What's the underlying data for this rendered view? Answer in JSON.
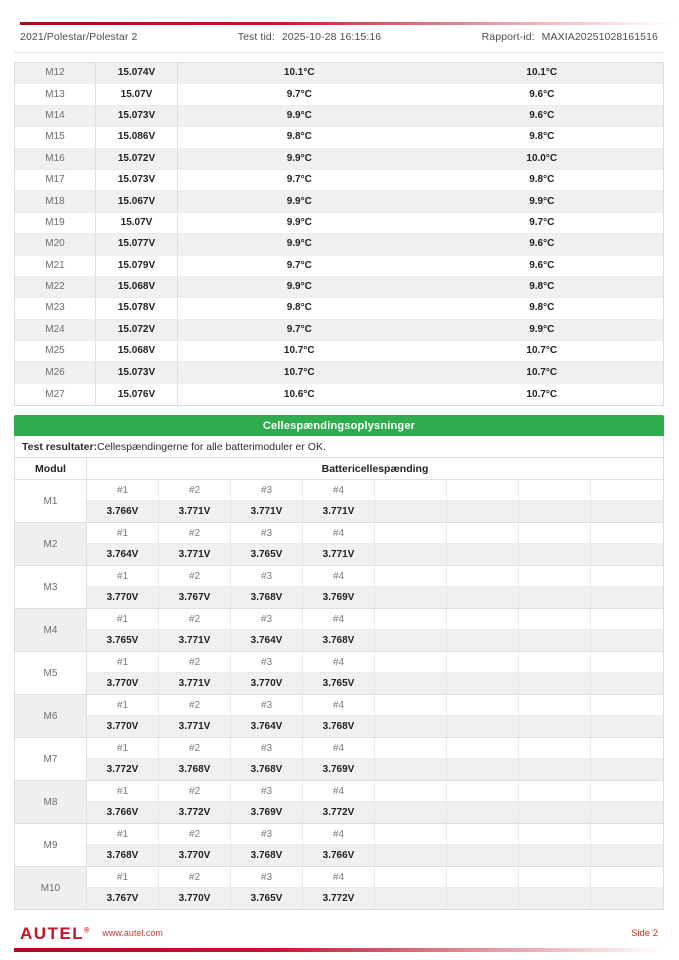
{
  "header": {
    "breadcrumb": "2021/Polestar/Polestar 2",
    "test_time_label": "Test tid:",
    "test_time_value": "2025-10-28 16:15:16",
    "report_id_label": "Rapport-id:",
    "report_id_value": "MAXIA20251028161516"
  },
  "module_table": {
    "rows": [
      {
        "module": "M12",
        "voltage": "15.074V",
        "temp1": "10.1°C",
        "temp2": "10.1°C"
      },
      {
        "module": "M13",
        "voltage": "15.07V",
        "temp1": "9.7°C",
        "temp2": "9.6°C"
      },
      {
        "module": "M14",
        "voltage": "15.073V",
        "temp1": "9.9°C",
        "temp2": "9.6°C"
      },
      {
        "module": "M15",
        "voltage": "15.086V",
        "temp1": "9.8°C",
        "temp2": "9.8°C"
      },
      {
        "module": "M16",
        "voltage": "15.072V",
        "temp1": "9.9°C",
        "temp2": "10.0°C"
      },
      {
        "module": "M17",
        "voltage": "15.073V",
        "temp1": "9.7°C",
        "temp2": "9.8°C"
      },
      {
        "module": "M18",
        "voltage": "15.067V",
        "temp1": "9.9°C",
        "temp2": "9.9°C"
      },
      {
        "module": "M19",
        "voltage": "15.07V",
        "temp1": "9.9°C",
        "temp2": "9.7°C"
      },
      {
        "module": "M20",
        "voltage": "15.077V",
        "temp1": "9.9°C",
        "temp2": "9.6°C"
      },
      {
        "module": "M21",
        "voltage": "15.079V",
        "temp1": "9.7°C",
        "temp2": "9.6°C"
      },
      {
        "module": "M22",
        "voltage": "15.068V",
        "temp1": "9.9°C",
        "temp2": "9.8°C"
      },
      {
        "module": "M23",
        "voltage": "15.078V",
        "temp1": "9.8°C",
        "temp2": "9.8°C"
      },
      {
        "module": "M24",
        "voltage": "15.072V",
        "temp1": "9.7°C",
        "temp2": "9.9°C"
      },
      {
        "module": "M25",
        "voltage": "15.068V",
        "temp1": "10.7°C",
        "temp2": "10.7°C"
      },
      {
        "module": "M26",
        "voltage": "15.073V",
        "temp1": "10.7°C",
        "temp2": "10.7°C"
      },
      {
        "module": "M27",
        "voltage": "15.076V",
        "temp1": "10.6°C",
        "temp2": "10.7°C"
      }
    ]
  },
  "cell_section": {
    "title": "Cellespændingsoplysninger",
    "result_label": "Test resultater:",
    "result_text": "Cellespændingerne for alle batterimoduler er OK.",
    "col_module": "Modul",
    "col_cells": "Battericellespænding",
    "modules": [
      {
        "module": "M1",
        "cells": [
          {
            "n": "#1",
            "v": "3.766V"
          },
          {
            "n": "#2",
            "v": "3.771V"
          },
          {
            "n": "#3",
            "v": "3.771V"
          },
          {
            "n": "#4",
            "v": "3.771V"
          }
        ]
      },
      {
        "module": "M2",
        "cells": [
          {
            "n": "#1",
            "v": "3.764V"
          },
          {
            "n": "#2",
            "v": "3.771V"
          },
          {
            "n": "#3",
            "v": "3.765V"
          },
          {
            "n": "#4",
            "v": "3.771V"
          }
        ]
      },
      {
        "module": "M3",
        "cells": [
          {
            "n": "#1",
            "v": "3.770V"
          },
          {
            "n": "#2",
            "v": "3.767V"
          },
          {
            "n": "#3",
            "v": "3.768V"
          },
          {
            "n": "#4",
            "v": "3.769V"
          }
        ]
      },
      {
        "module": "M4",
        "cells": [
          {
            "n": "#1",
            "v": "3.765V"
          },
          {
            "n": "#2",
            "v": "3.771V"
          },
          {
            "n": "#3",
            "v": "3.764V"
          },
          {
            "n": "#4",
            "v": "3.768V"
          }
        ]
      },
      {
        "module": "M5",
        "cells": [
          {
            "n": "#1",
            "v": "3.770V"
          },
          {
            "n": "#2",
            "v": "3.771V"
          },
          {
            "n": "#3",
            "v": "3.770V"
          },
          {
            "n": "#4",
            "v": "3.765V"
          }
        ]
      },
      {
        "module": "M6",
        "cells": [
          {
            "n": "#1",
            "v": "3.770V"
          },
          {
            "n": "#2",
            "v": "3.771V"
          },
          {
            "n": "#3",
            "v": "3.764V"
          },
          {
            "n": "#4",
            "v": "3.768V"
          }
        ]
      },
      {
        "module": "M7",
        "cells": [
          {
            "n": "#1",
            "v": "3.772V"
          },
          {
            "n": "#2",
            "v": "3.768V"
          },
          {
            "n": "#3",
            "v": "3.768V"
          },
          {
            "n": "#4",
            "v": "3.769V"
          }
        ]
      },
      {
        "module": "M8",
        "cells": [
          {
            "n": "#1",
            "v": "3.766V"
          },
          {
            "n": "#2",
            "v": "3.772V"
          },
          {
            "n": "#3",
            "v": "3.769V"
          },
          {
            "n": "#4",
            "v": "3.772V"
          }
        ]
      },
      {
        "module": "M9",
        "cells": [
          {
            "n": "#1",
            "v": "3.768V"
          },
          {
            "n": "#2",
            "v": "3.770V"
          },
          {
            "n": "#3",
            "v": "3.768V"
          },
          {
            "n": "#4",
            "v": "3.766V"
          }
        ]
      },
      {
        "module": "M10",
        "cells": [
          {
            "n": "#1",
            "v": "3.767V"
          },
          {
            "n": "#2",
            "v": "3.770V"
          },
          {
            "n": "#3",
            "v": "3.765V"
          },
          {
            "n": "#4",
            "v": "3.772V"
          }
        ]
      }
    ]
  },
  "footer": {
    "brand": "AUTEL",
    "website": "www.autel.com",
    "page": "Side 2"
  },
  "colors": {
    "banner_green": "#2fad4e",
    "brand_red": "#ce1126",
    "row_alt_gray": "#f0f0f0"
  }
}
